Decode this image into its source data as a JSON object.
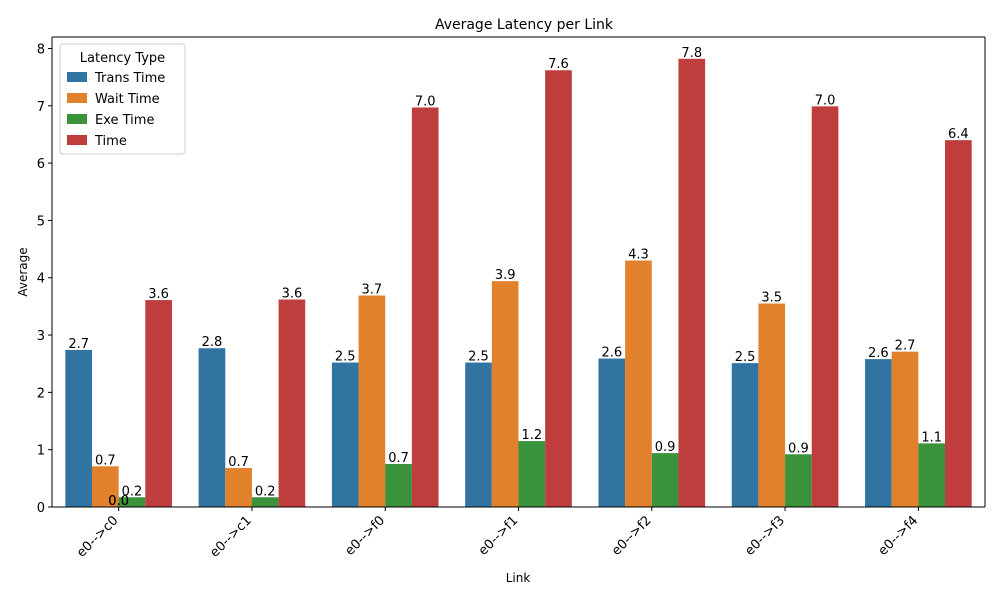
{
  "chart_data": {
    "type": "bar",
    "title": "Average Latency per Link",
    "xlabel": "Link",
    "ylabel": "Average",
    "categories": [
      "e0-->c0",
      "e0-->c1",
      "e0-->f0",
      "e0-->f1",
      "e0-->f2",
      "e0-->f3",
      "e0-->f4"
    ],
    "ylim": [
      0,
      8.2
    ],
    "yticks": [
      0,
      1,
      2,
      3,
      4,
      5,
      6,
      7,
      8
    ],
    "grid": false,
    "legend": {
      "title": "Latency Type",
      "placement": "top-left"
    },
    "series": [
      {
        "name": "Trans Time",
        "color": "#3274a1",
        "values": [
          2.74,
          2.77,
          2.52,
          2.52,
          2.59,
          2.51,
          2.58
        ],
        "labels": [
          "2.7",
          "2.8",
          "2.5",
          "2.5",
          "2.6",
          "2.5",
          "2.6"
        ]
      },
      {
        "name": "Wait Time",
        "color": "#e1812c",
        "values": [
          0.71,
          0.68,
          3.69,
          3.94,
          4.3,
          3.55,
          2.71
        ],
        "labels": [
          "0.7",
          "0.7",
          "3.7",
          "3.9",
          "4.3",
          "3.5",
          "2.7"
        ]
      },
      {
        "name": "Exe Time",
        "color": "#3a923a",
        "values": [
          0.17,
          0.17,
          0.75,
          1.15,
          0.94,
          0.92,
          1.11
        ],
        "labels": [
          "0.2",
          "0.2",
          "0.7",
          "1.2",
          "0.9",
          "0.9",
          "1.1"
        ]
      },
      {
        "name": "Time",
        "color": "#c03d3e",
        "values": [
          3.61,
          3.62,
          6.97,
          7.62,
          7.82,
          6.99,
          6.4
        ],
        "labels": [
          "3.6",
          "3.6",
          "7.0",
          "7.6",
          "7.8",
          "7.0",
          "6.4"
        ]
      }
    ],
    "extra_labels": [
      {
        "category_index": 0,
        "text": "0.0"
      },
      {
        "category_index": 0,
        "text": "0.0"
      }
    ]
  }
}
